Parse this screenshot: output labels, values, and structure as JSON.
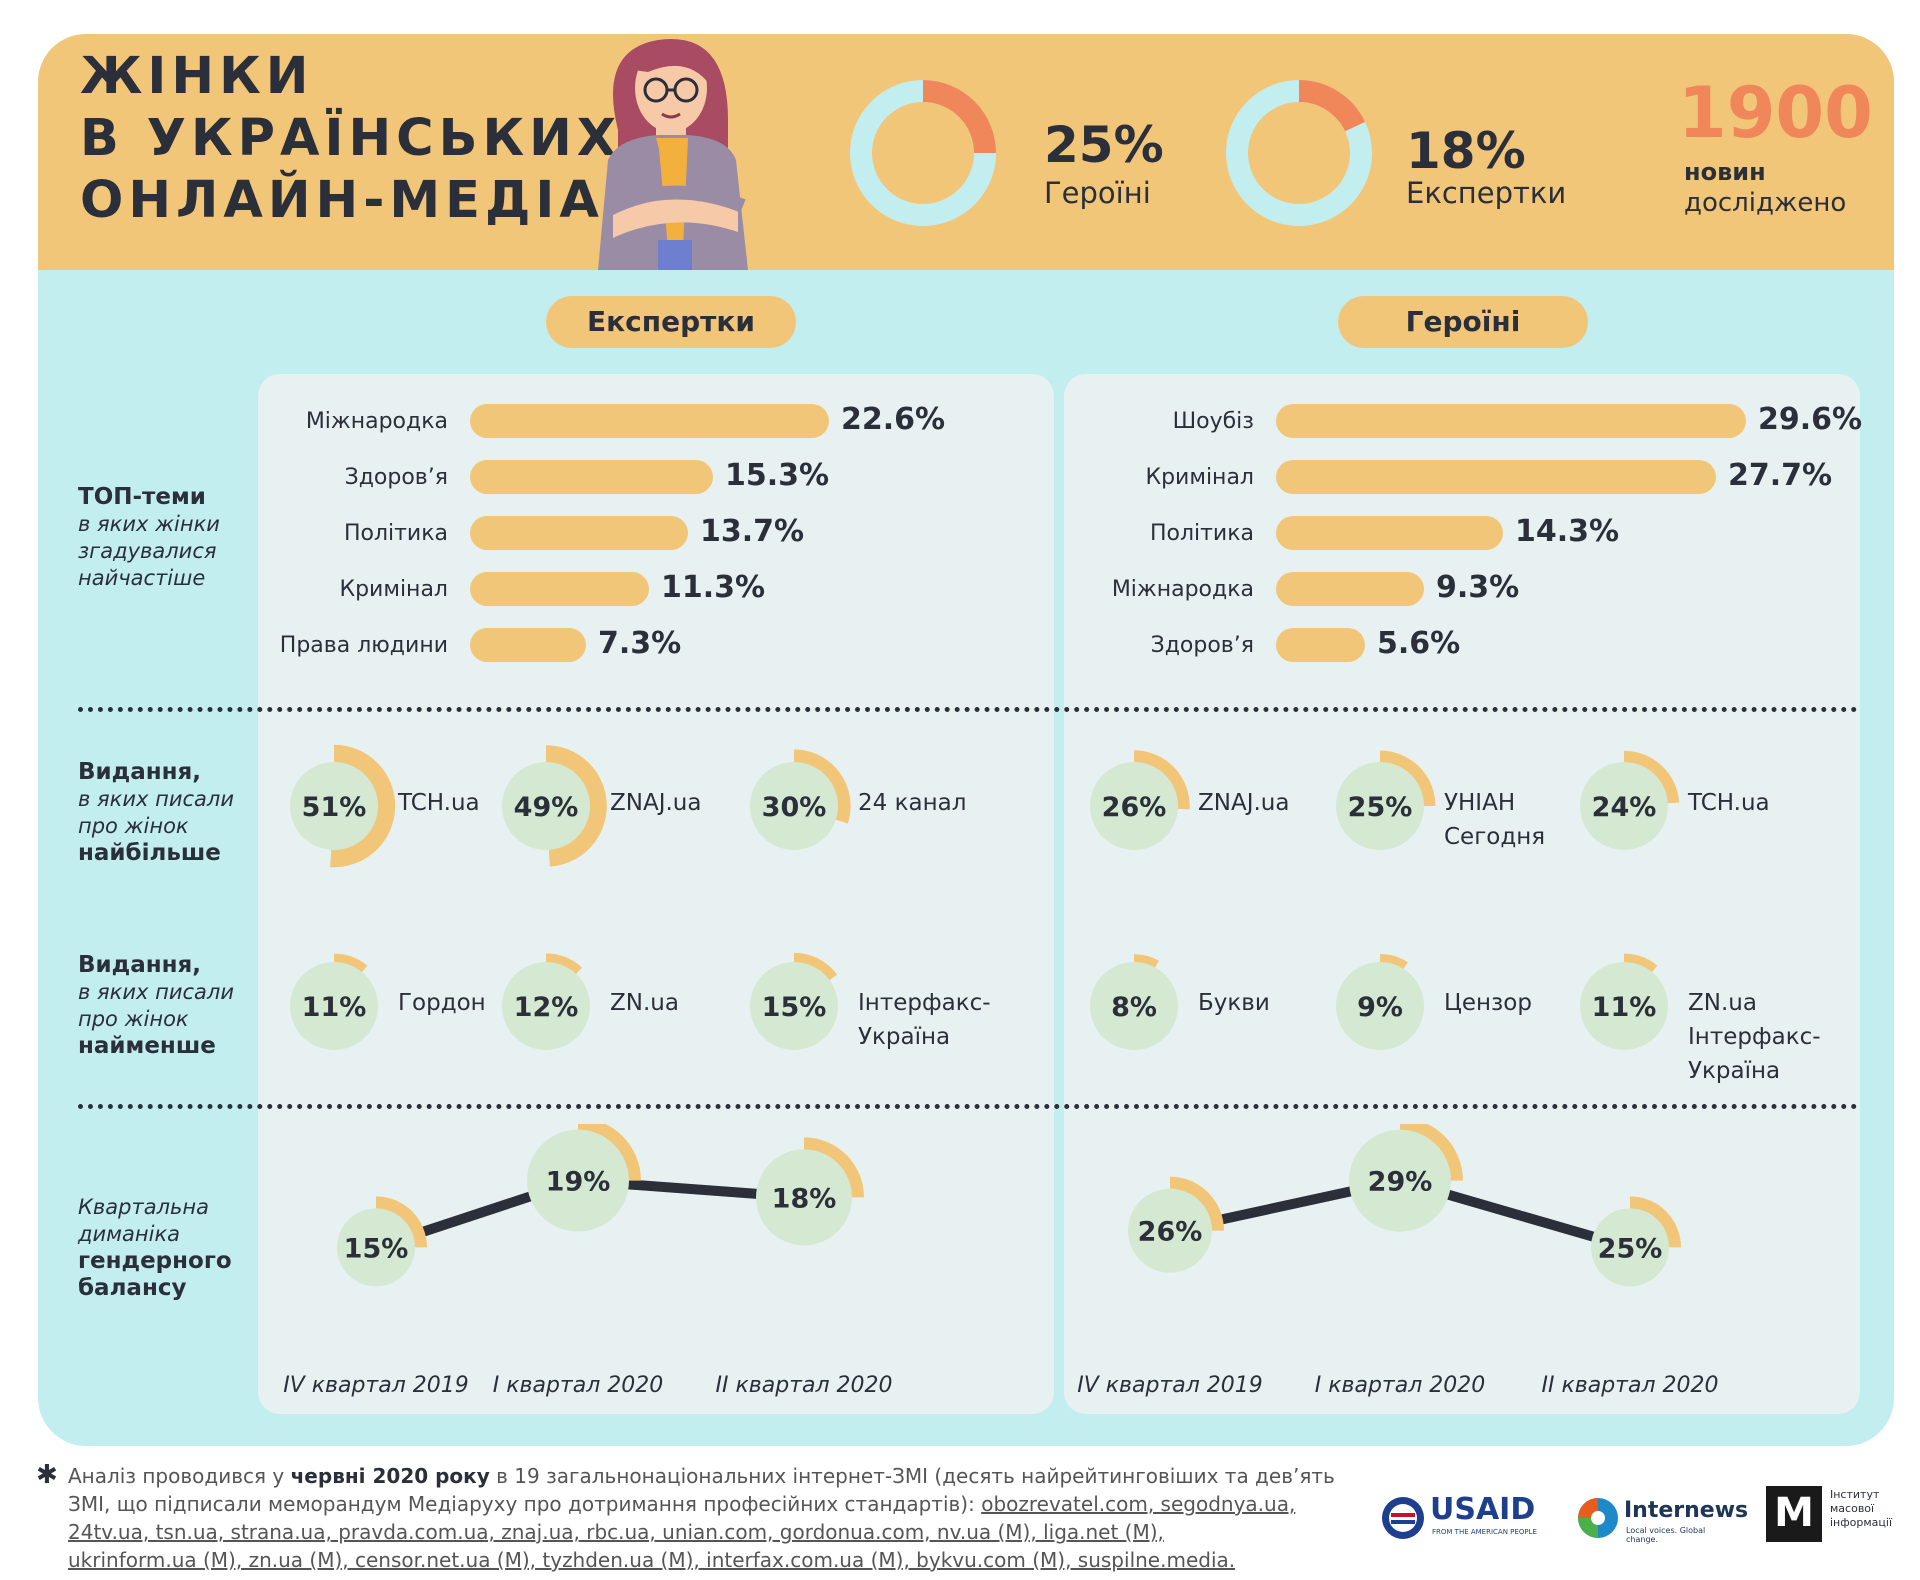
{
  "header": {
    "title_lines": [
      "ЖІНКИ",
      "В УКРАЇНСЬКИХ",
      "ОНЛАЙН-МЕДІА"
    ],
    "stat1_pct": "25%",
    "stat1_label": "Героїні",
    "stat2_pct": "18%",
    "stat2_label": "Експертки",
    "stat3_num": "1900",
    "stat3_line1": "новин",
    "stat3_line2": "досліджено"
  },
  "sections": {
    "experts_title": "Експертки",
    "heroines_title": "Героїні",
    "top_themes_bold": "ТОП-теми",
    "top_themes_italic": [
      "в яких жінки",
      "згадувалися",
      "найчастіше"
    ],
    "most_bold": "Видання,",
    "most_italic": [
      "в яких писали",
      "про жінок"
    ],
    "most_bold2": "найбільше",
    "least_bold": "Видання,",
    "least_italic": [
      "в яких писали",
      "про жінок"
    ],
    "least_bold2": "найменше",
    "quarterly_italic": [
      "Квартальна",
      "диманіка"
    ],
    "quarterly_bold": [
      "гендерного",
      "балансу"
    ]
  },
  "chart_data": [
    {
      "type": "bar",
      "title": "Експертки — ТОП-теми",
      "categories": [
        "Міжнародка",
        "Здоров’я",
        "Політика",
        "Кримінал",
        "Права людини"
      ],
      "values": [
        22.6,
        15.3,
        13.7,
        11.3,
        7.3
      ],
      "labels": [
        "22.6%",
        "15.3%",
        "13.7%",
        "11.3%",
        "7.3%"
      ]
    },
    {
      "type": "bar",
      "title": "Героїні — ТОП-теми",
      "categories": [
        "Шоубіз",
        "Кримінал",
        "Політика",
        "Міжнародка",
        "Здоров’я"
      ],
      "values": [
        29.6,
        27.7,
        14.3,
        9.3,
        5.6
      ],
      "labels": [
        "29.6%",
        "27.7%",
        "14.3%",
        "9.3%",
        "5.6%"
      ]
    },
    {
      "type": "pie",
      "title": "Експертки — найбільше",
      "items": [
        {
          "pct": 51,
          "label": "51%",
          "name": "TCH.ua"
        },
        {
          "pct": 49,
          "label": "49%",
          "name": "ZNAJ.ua"
        },
        {
          "pct": 30,
          "label": "30%",
          "name": "24 канал"
        }
      ]
    },
    {
      "type": "pie",
      "title": "Героїні — найбільше",
      "items": [
        {
          "pct": 26,
          "label": "26%",
          "name": "ZNAJ.ua"
        },
        {
          "pct": 25,
          "label": "25%",
          "name": "УНІАН Сегодня"
        },
        {
          "pct": 24,
          "label": "24%",
          "name": "TCH.ua"
        }
      ]
    },
    {
      "type": "pie",
      "title": "Експертки — найменше",
      "items": [
        {
          "pct": 11,
          "label": "11%",
          "name": "Гордон"
        },
        {
          "pct": 12,
          "label": "12%",
          "name": "ZN.ua"
        },
        {
          "pct": 15,
          "label": "15%",
          "name": "Інтерфакс-Україна"
        }
      ]
    },
    {
      "type": "pie",
      "title": "Героїні — найменше",
      "items": [
        {
          "pct": 8,
          "label": "8%",
          "name": "Букви"
        },
        {
          "pct": 9,
          "label": "9%",
          "name": "Цензор"
        },
        {
          "pct": 11,
          "label": "11%",
          "name": "ZN.ua Інтерфакс-Україна"
        }
      ]
    },
    {
      "type": "line",
      "title": "Експертки — квартальна динаміка",
      "x": [
        "IV квартал 2019",
        "I квартал 2020",
        "II квартал 2020"
      ],
      "values": [
        15,
        19,
        18
      ],
      "labels": [
        "15%",
        "19%",
        "18%"
      ]
    },
    {
      "type": "line",
      "title": "Героїні — квартальна динаміка",
      "x": [
        "IV квартал 2019",
        "I квартал 2020",
        "II квартал 2020"
      ],
      "values": [
        26,
        29,
        25
      ],
      "labels": [
        "26%",
        "29%",
        "25%"
      ]
    }
  ],
  "footer": {
    "asterisk": "✱",
    "prefix": "Аналіз проводився у ",
    "bold": "червні 2020 року",
    "text1": " в 19 загальнонаціональних інтернет-ЗМІ (десять найрейтинговіших та дев’ять",
    "text2": "ЗМІ, що підписали меморандум Медіаруху про дотримання професійних стандартів): ",
    "sites": "obozrevatel.com, segodnya.ua,",
    "line3": "24tv.ua, tsn.ua, strana.ua, pravda.com.ua, znaj.ua, rbc.ua, unian.com, gordonua.com, nv.ua (M), liga.net (M),",
    "line4": "ukrinform.ua (M), zn.ua (M), censor.net.ua (M), tyzhden.ua (M), interfax.com.ua (M), bykvu.com (M), suspilne.media."
  },
  "logos": {
    "usaid": "USAID",
    "usaid_sub": "FROM THE AMERICAN PEOPLE",
    "internews": "Internews",
    "internews_sub": "Local voices. Global change.",
    "imi_mark": "M",
    "imi_lines": [
      "Інститут",
      "масової",
      "інформації"
    ]
  },
  "colors": {
    "yellow": "#f2c679",
    "orange": "#f0875a",
    "cyan": "#c3eef0",
    "green": "#d4e8d2",
    "dark": "#2b2f3a"
  }
}
